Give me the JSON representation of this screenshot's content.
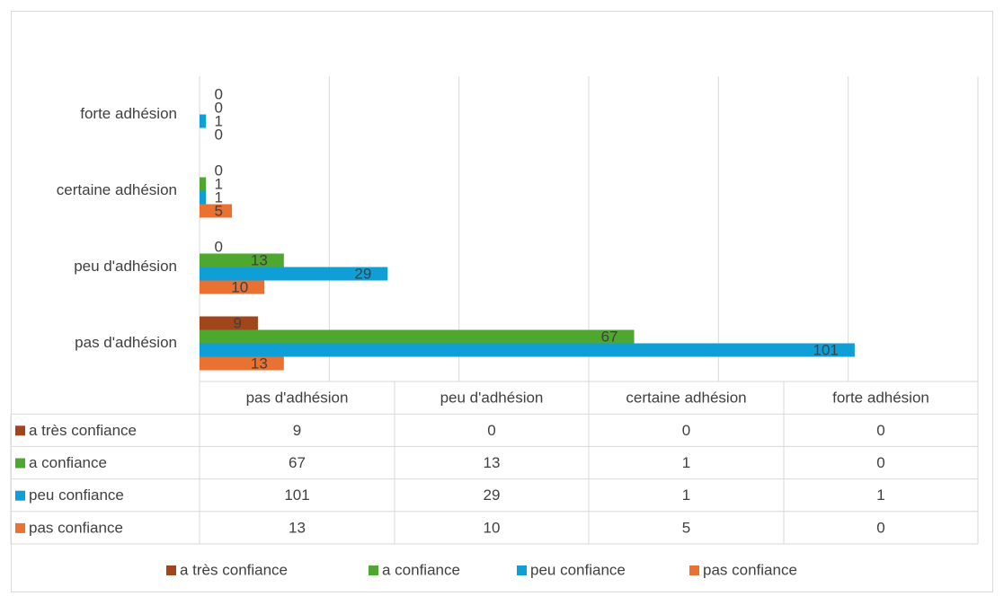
{
  "chart_data": {
    "type": "bar",
    "orientation": "horizontal",
    "categories": [
      "pas d'adhésion",
      "peu d'adhésion",
      "certaine adhésion",
      "forte adhésion"
    ],
    "series": [
      {
        "name": "a très confiance",
        "color": "#a0461a",
        "values": [
          9,
          0,
          0,
          0
        ]
      },
      {
        "name": "a confiance",
        "color": "#4ea72e",
        "values": [
          67,
          13,
          1,
          0
        ]
      },
      {
        "name": "peu confiance",
        "color": "#0f9ed5",
        "values": [
          101,
          29,
          1,
          1
        ]
      },
      {
        "name": "pas confiance",
        "color": "#e97132",
        "values": [
          13,
          10,
          5,
          0
        ]
      }
    ],
    "xlim": [
      0,
      120
    ],
    "xticks": [
      0,
      20,
      40,
      60,
      80,
      100,
      120
    ],
    "grid": true,
    "data_labels": true,
    "data_table": true,
    "legend": "bottom"
  }
}
